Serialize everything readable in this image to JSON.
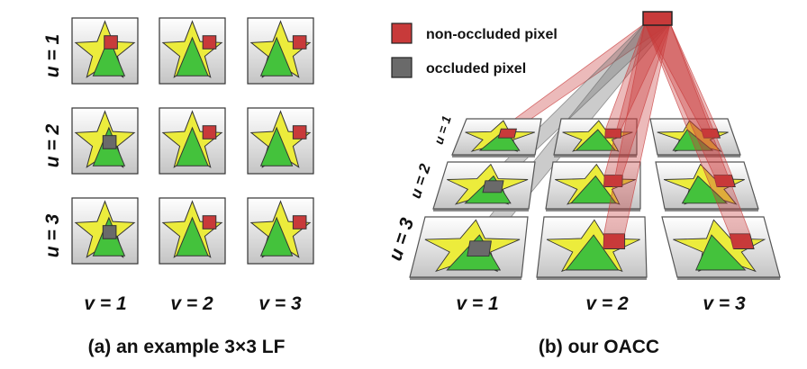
{
  "colors": {
    "star": "#ecec3c",
    "triangle": "#44c23c",
    "non_occluded": "#c83a3a",
    "occluded": "#6a6a6a",
    "tile_top": "#ffffff",
    "tile_bottom": "#c4c4c4"
  },
  "panel_a": {
    "caption": "(a) an example 3×3 LF",
    "row_labels": [
      "u = 1",
      "u = 2",
      "u = 3"
    ],
    "col_labels": [
      "v = 1",
      "v = 2",
      "v = 3"
    ],
    "occlusion_grid": [
      [
        "non-occluded",
        "non-occluded",
        "non-occluded"
      ],
      [
        "occluded",
        "non-occluded",
        "non-occluded"
      ],
      [
        "occluded",
        "non-occluded",
        "non-occluded"
      ]
    ]
  },
  "panel_b": {
    "caption": "(b) our OACC",
    "row_labels": [
      "u = 1",
      "u = 2",
      "u = 3"
    ],
    "col_labels": [
      "v = 1",
      "v = 2",
      "v = 3"
    ],
    "legend": [
      {
        "label": "non-occluded pixel",
        "color_key": "non_occluded"
      },
      {
        "label": "occluded pixel",
        "color_key": "occluded"
      }
    ]
  }
}
